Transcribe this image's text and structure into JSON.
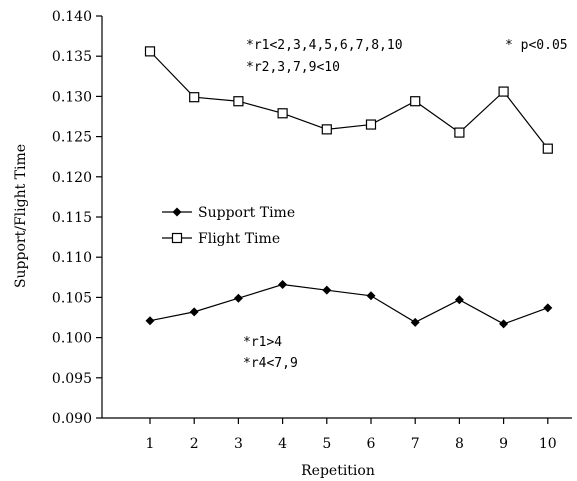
{
  "chart_data": {
    "type": "line",
    "title": "",
    "xlabel": "Repetition",
    "ylabel": "Support/Flight Time",
    "x": [
      1,
      2,
      3,
      4,
      5,
      6,
      7,
      8,
      9,
      10
    ],
    "x_ticks": [
      "1",
      "2",
      "3",
      "4",
      "5",
      "6",
      "7",
      "8",
      "9",
      "10"
    ],
    "ylim": [
      0.09,
      0.14
    ],
    "y_ticks": [
      "0.090",
      "0.095",
      "0.100",
      "0.105",
      "0.110",
      "0.115",
      "0.120",
      "0.125",
      "0.130",
      "0.135",
      "0.140"
    ],
    "grid": false,
    "legend_position": "middle-left",
    "series": [
      {
        "name": "Support Time",
        "marker": "filled-diamond",
        "values": [
          0.1021,
          0.1032,
          0.1049,
          0.1066,
          0.1059,
          0.1052,
          0.1019,
          0.1047,
          0.1017,
          0.1037
        ]
      },
      {
        "name": "Flight Time",
        "marker": "open-square",
        "values": [
          0.1356,
          0.1299,
          0.1294,
          0.1279,
          0.1259,
          0.1265,
          0.1294,
          0.1255,
          0.1306,
          0.1235
        ]
      }
    ],
    "annotations": {
      "flight_line1": "*r1<2,3,4,5,6,7,8,10",
      "flight_line2": "*r2,3,7,9<10",
      "significance": "* p<0.05",
      "support_line1": "*r1>4",
      "support_line2": "*r4<7,9"
    }
  },
  "colors": {
    "line": "#000000",
    "background": "#ffffff"
  }
}
